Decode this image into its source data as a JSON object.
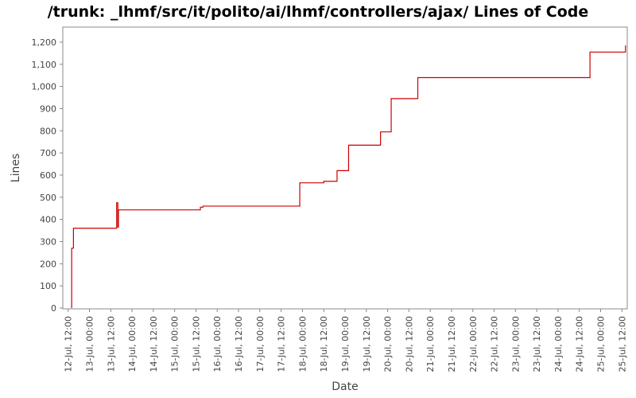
{
  "chart_data": {
    "type": "line",
    "title": "/trunk: _lhmf/src/it/polito/ai/lhmf/controllers/ajax/ Lines of Code",
    "xlabel": "Date",
    "ylabel": "Lines",
    "ylim": [
      0,
      1250
    ],
    "yticks": [
      0,
      100,
      200,
      300,
      400,
      500,
      600,
      700,
      800,
      900,
      1000,
      1100,
      1200
    ],
    "ytick_labels": [
      "0",
      "100",
      "200",
      "300",
      "400",
      "500",
      "600",
      "700",
      "800",
      "900",
      "1,000",
      "1,100",
      "1,200"
    ],
    "xlim": [
      "2012-07-12T09:00",
      "2012-07-25T15:00"
    ],
    "xticks": [
      "2012-07-12T12:00",
      "2012-07-13T00:00",
      "2012-07-13T12:00",
      "2012-07-14T00:00",
      "2012-07-14T12:00",
      "2012-07-15T00:00",
      "2012-07-15T12:00",
      "2012-07-16T00:00",
      "2012-07-16T12:00",
      "2012-07-17T00:00",
      "2012-07-17T12:00",
      "2012-07-18T00:00",
      "2012-07-18T12:00",
      "2012-07-19T00:00",
      "2012-07-19T12:00",
      "2012-07-20T00:00",
      "2012-07-20T12:00",
      "2012-07-21T00:00",
      "2012-07-21T12:00",
      "2012-07-22T00:00",
      "2012-07-22T12:00",
      "2012-07-23T00:00",
      "2012-07-23T12:00",
      "2012-07-24T00:00",
      "2012-07-24T12:00",
      "2012-07-25T00:00",
      "2012-07-25T12:00"
    ],
    "xtick_labels": [
      "12-Jul, 12:00",
      "13-Jul, 00:00",
      "13-Jul, 12:00",
      "14-Jul, 00:00",
      "14-Jul, 12:00",
      "15-Jul, 00:00",
      "15-Jul, 12:00",
      "16-Jul, 00:00",
      "16-Jul, 12:00",
      "17-Jul, 00:00",
      "17-Jul, 12:00",
      "18-Jul, 00:00",
      "18-Jul, 12:00",
      "19-Jul, 00:00",
      "19-Jul, 12:00",
      "20-Jul, 00:00",
      "20-Jul, 12:00",
      "21-Jul, 00:00",
      "21-Jul, 12:00",
      "22-Jul, 00:00",
      "22-Jul, 12:00",
      "23-Jul, 00:00",
      "23-Jul, 12:00",
      "24-Jul, 00:00",
      "24-Jul, 12:00",
      "25-Jul, 00:00",
      "25-Jul, 12:00"
    ],
    "step": true,
    "grid": false,
    "series": [
      {
        "color": "#cc0000",
        "points": [
          {
            "x": "2012-07-12T14:00",
            "y": 0
          },
          {
            "x": "2012-07-12T14:00",
            "y": 270
          },
          {
            "x": "2012-07-12T15:00",
            "y": 360
          },
          {
            "x": "2012-07-13T15:20",
            "y": 475
          },
          {
            "x": "2012-07-13T16:00",
            "y": 365
          },
          {
            "x": "2012-07-13T16:20",
            "y": 443
          },
          {
            "x": "2012-07-15T14:30",
            "y": 455
          },
          {
            "x": "2012-07-15T16:00",
            "y": 460
          },
          {
            "x": "2012-07-17T22:30",
            "y": 565
          },
          {
            "x": "2012-07-18T12:00",
            "y": 572
          },
          {
            "x": "2012-07-18T19:30",
            "y": 620
          },
          {
            "x": "2012-07-19T02:00",
            "y": 735
          },
          {
            "x": "2012-07-19T20:00",
            "y": 795
          },
          {
            "x": "2012-07-20T02:00",
            "y": 945
          },
          {
            "x": "2012-07-20T17:00",
            "y": 1040
          },
          {
            "x": "2012-07-24T18:00",
            "y": 1155
          },
          {
            "x": "2012-07-25T14:00",
            "y": 1185
          }
        ]
      }
    ]
  }
}
